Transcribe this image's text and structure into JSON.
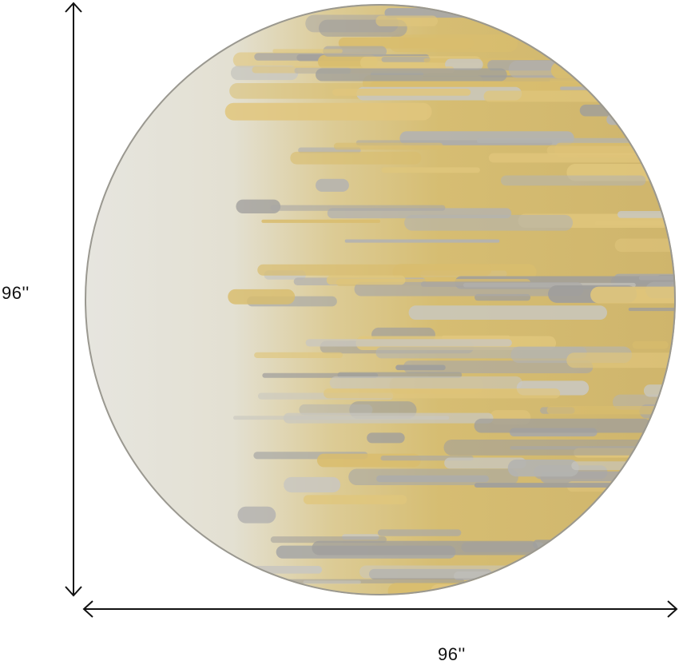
{
  "product": {
    "shape": "round rug",
    "colors": {
      "cream": "#e4e2d8",
      "gold": "#d9bd6e",
      "gray": "#a9a8a6",
      "edge": "#9a9890"
    }
  },
  "dimensions": {
    "height_label": "96''",
    "width_label": "96''"
  }
}
